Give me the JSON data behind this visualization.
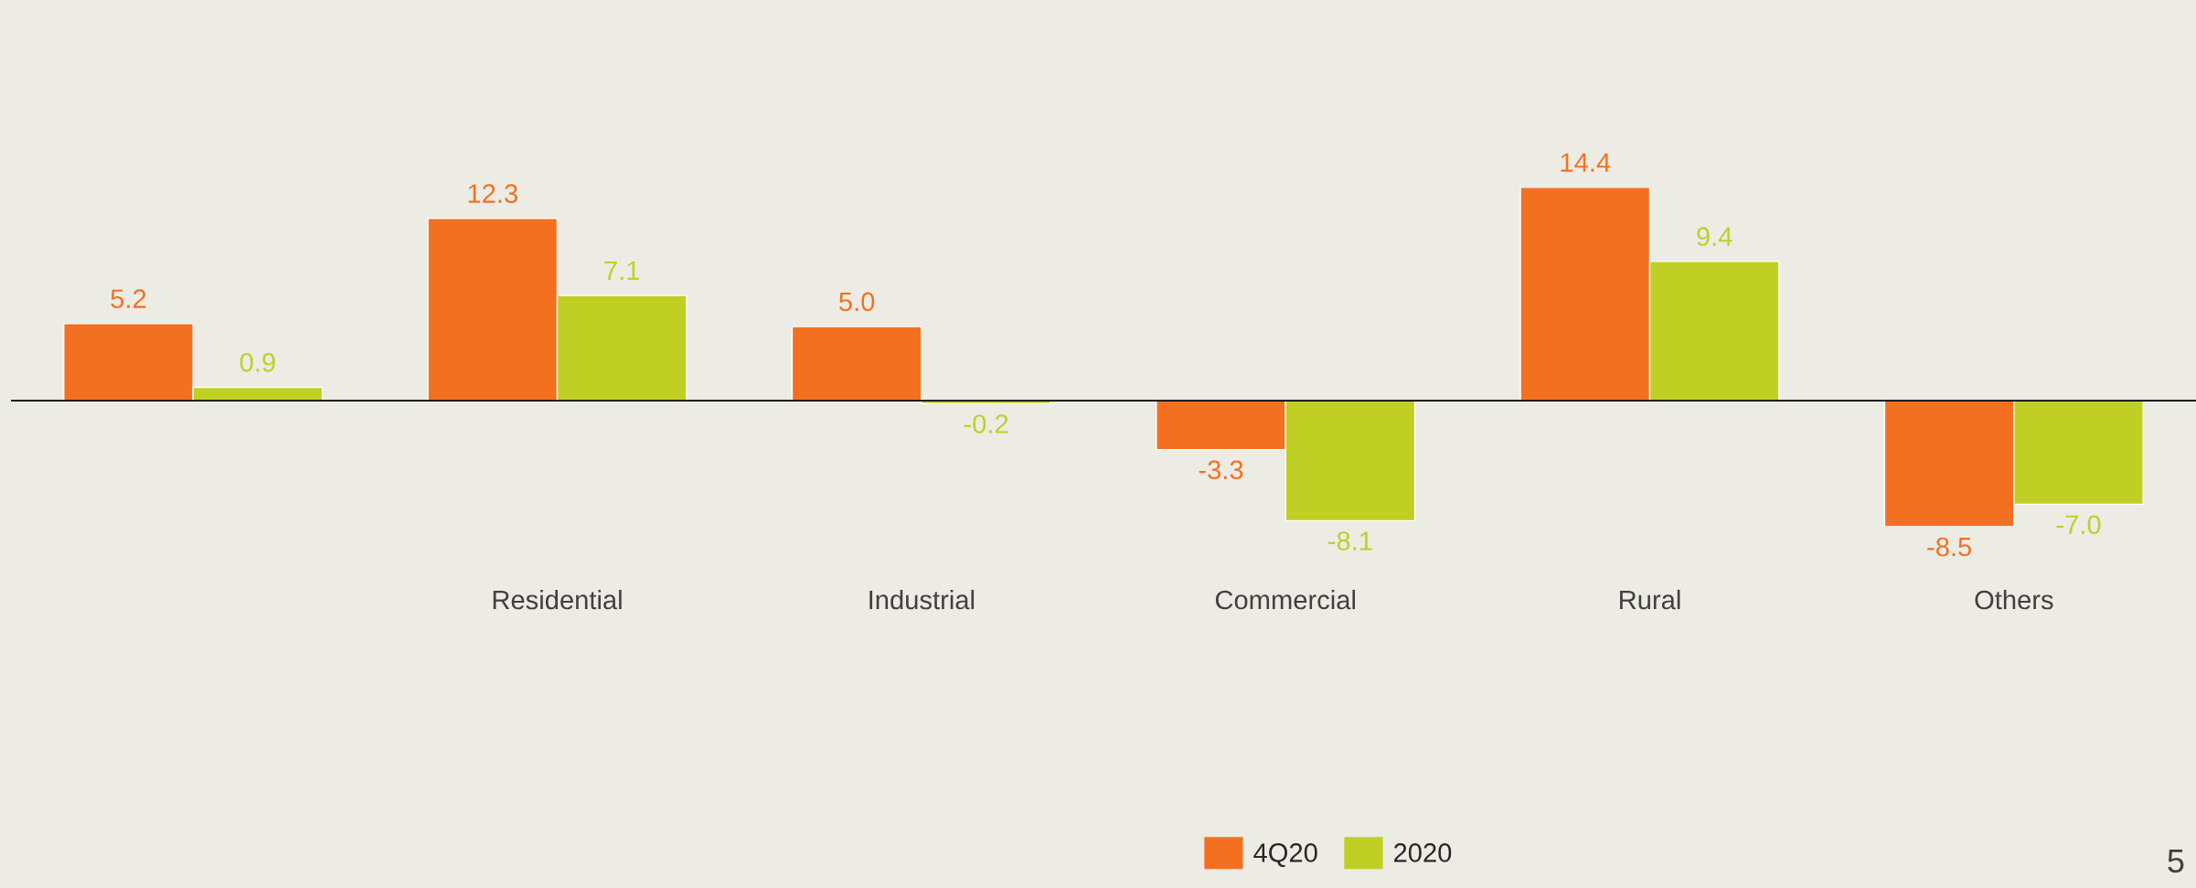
{
  "chart_data": {
    "type": "bar",
    "categories": [
      null,
      "Residential",
      "Industrial",
      "Commercial",
      "Rural",
      "Others"
    ],
    "series": [
      {
        "name": "4Q20",
        "color": "#f37021",
        "values": [
          5.2,
          12.3,
          5.0,
          -3.3,
          14.4,
          -8.5
        ],
        "value_labels": [
          "5.2",
          "12.3",
          "5.0",
          "-3.3",
          "14.4",
          "-8.5"
        ]
      },
      {
        "name": "2020",
        "color": "#c0cf24",
        "values": [
          0.9,
          7.1,
          -0.2,
          -8.1,
          9.4,
          -7.0
        ],
        "value_labels": [
          "0.9",
          "7.1",
          "-0.2",
          "-8.1",
          "9.4",
          "-7.0"
        ]
      }
    ],
    "tick_labels": "x",
    "legend": "bottom",
    "annotations": [
      "5"
    ]
  }
}
